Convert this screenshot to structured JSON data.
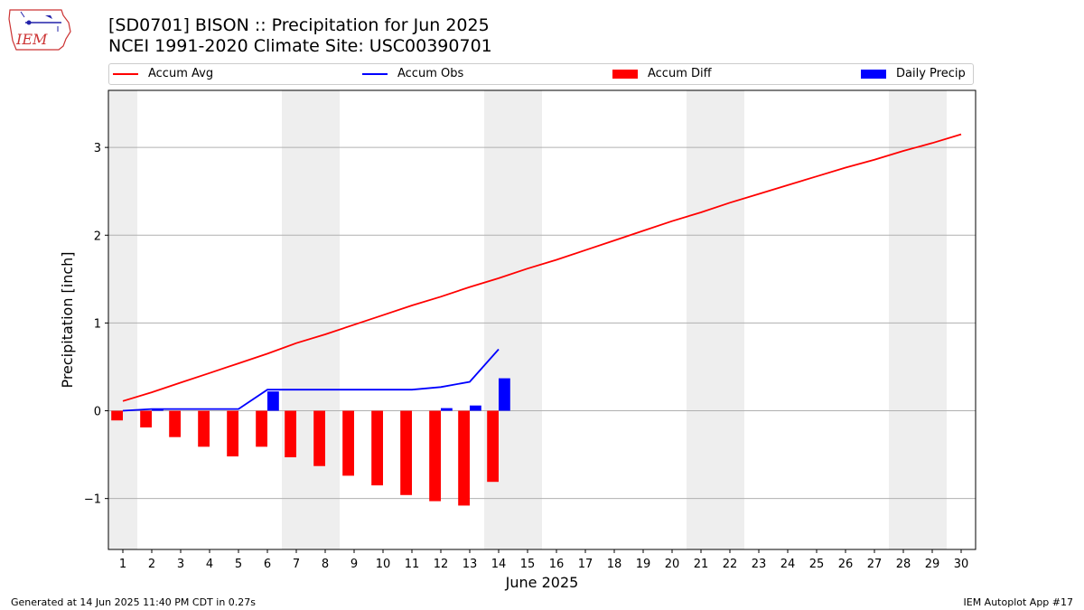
{
  "logo": {
    "text": "IEM"
  },
  "title": {
    "line1": "[SD0701] BISON :: Precipitation for Jun 2025",
    "line2": "NCEI 1991-2020 Climate Site: USC00390701"
  },
  "legend": {
    "items": [
      {
        "label": "Accum Avg",
        "type": "line",
        "color": "#ff0000"
      },
      {
        "label": "Accum Obs",
        "type": "line",
        "color": "#0000ff"
      },
      {
        "label": "Accum Diff",
        "type": "bar",
        "color": "#ff0000"
      },
      {
        "label": "Daily Precip",
        "type": "bar",
        "color": "#0000ff"
      }
    ],
    "placement": "top, above plot, horizontal"
  },
  "footer": {
    "left": "Generated at 14 Jun 2025 11:40 PM CDT in 0.27s",
    "right": "IEM Autoplot App #17"
  },
  "chart_data": {
    "type": "bar",
    "title": "[SD0701] BISON :: Precipitation for Jun 2025",
    "subtitle": "NCEI 1991-2020 Climate Site: USC00390701",
    "xlabel": "June 2025",
    "ylabel": "Precipitation [inch]",
    "xlim": [
      0.5,
      30.5
    ],
    "ylim": [
      -1.58,
      3.65
    ],
    "grid": "horizontal",
    "x": [
      1,
      2,
      3,
      4,
      5,
      6,
      7,
      8,
      9,
      10,
      11,
      12,
      13,
      14,
      15,
      16,
      17,
      18,
      19,
      20,
      21,
      22,
      23,
      24,
      25,
      26,
      27,
      28,
      29,
      30
    ],
    "x_tick_labels": [
      "1",
      "2",
      "3",
      "4",
      "5",
      "6",
      "7",
      "8",
      "9",
      "10",
      "11",
      "12",
      "13",
      "14",
      "15",
      "16",
      "17",
      "18",
      "19",
      "20",
      "21",
      "22",
      "23",
      "24",
      "25",
      "26",
      "27",
      "28",
      "29",
      "30"
    ],
    "y_ticks": [
      -1,
      0,
      1,
      2,
      3
    ],
    "y_tick_labels": [
      "−1",
      "0",
      "1",
      "2",
      "3"
    ],
    "weekend_shading": [
      [
        0.5,
        1.5
      ],
      [
        6.5,
        8.5
      ],
      [
        13.5,
        15.5
      ],
      [
        20.5,
        22.5
      ],
      [
        27.5,
        29.5
      ]
    ],
    "shade_color": "#eeeeee",
    "series": [
      {
        "name": "Accum Avg",
        "type": "line",
        "color": "#ff0000",
        "x": [
          1,
          2,
          3,
          4,
          5,
          6,
          7,
          8,
          9,
          10,
          11,
          12,
          13,
          14,
          15,
          16,
          17,
          18,
          19,
          20,
          21,
          22,
          23,
          24,
          25,
          26,
          27,
          28,
          29,
          30
        ],
        "values": [
          0.11,
          0.21,
          0.32,
          0.43,
          0.54,
          0.65,
          0.77,
          0.87,
          0.98,
          1.09,
          1.2,
          1.3,
          1.41,
          1.51,
          1.62,
          1.72,
          1.83,
          1.94,
          2.05,
          2.16,
          2.26,
          2.37,
          2.47,
          2.57,
          2.67,
          2.77,
          2.86,
          2.96,
          3.05,
          3.15
        ]
      },
      {
        "name": "Accum Obs",
        "type": "line",
        "color": "#0000ff",
        "x": [
          1,
          2,
          3,
          4,
          5,
          6,
          7,
          8,
          9,
          10,
          11,
          12,
          13,
          14
        ],
        "values": [
          0.0,
          0.02,
          0.02,
          0.02,
          0.02,
          0.24,
          0.24,
          0.24,
          0.24,
          0.24,
          0.24,
          0.27,
          0.33,
          0.7
        ]
      },
      {
        "name": "Accum Diff",
        "type": "bar",
        "color": "#ff0000",
        "offset": -0.2,
        "x": [
          1,
          2,
          3,
          4,
          5,
          6,
          7,
          8,
          9,
          10,
          11,
          12,
          13,
          14
        ],
        "values": [
          -0.11,
          -0.19,
          -0.3,
          -0.41,
          -0.52,
          -0.41,
          -0.53,
          -0.63,
          -0.74,
          -0.85,
          -0.96,
          -1.03,
          -1.08,
          -0.81
        ]
      },
      {
        "name": "Daily Precip",
        "type": "bar",
        "color": "#0000ff",
        "offset": 0.2,
        "x": [
          1,
          2,
          3,
          4,
          5,
          6,
          7,
          8,
          9,
          10,
          11,
          12,
          13,
          14
        ],
        "values": [
          0.0,
          0.02,
          0.0,
          0.0,
          0.0,
          0.22,
          0.0,
          0.0,
          0.0,
          0.0,
          0.0,
          0.03,
          0.06,
          0.37
        ]
      }
    ]
  }
}
